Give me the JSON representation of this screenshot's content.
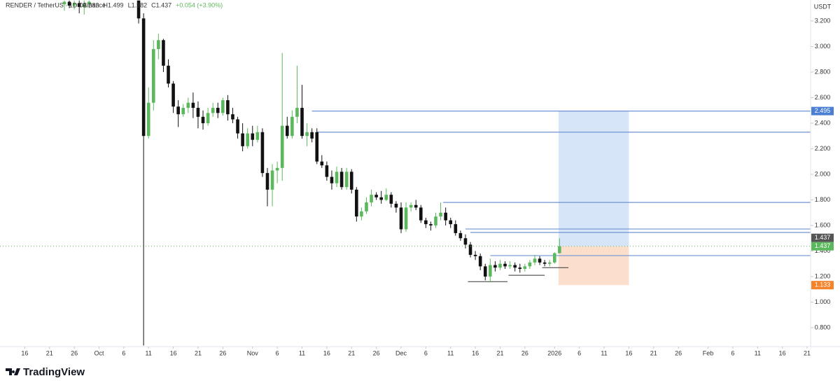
{
  "chart_data": {
    "type": "candlestick",
    "title": "RENDER / TetherUS · 1D · Binance",
    "ohlc_header": [
      "O1.383",
      "H1.499",
      "L1.382",
      "C1.437",
      "+0.054 (+3.90%)"
    ],
    "axis_unit": "USDT",
    "brand": "TradingView",
    "up_color": "#5cb85c",
    "down_color": "#111111",
    "x": [
      8,
      9,
      10,
      11,
      12,
      13,
      23,
      24,
      25,
      26,
      27,
      28,
      29,
      30,
      31,
      32,
      33,
      34,
      35,
      36,
      37,
      38,
      39,
      40,
      41,
      42,
      43,
      44,
      45,
      46,
      47,
      48,
      49,
      50,
      51,
      52,
      53,
      54,
      55,
      56,
      57,
      58,
      59,
      60,
      61,
      62,
      63,
      64,
      65,
      66,
      67,
      68,
      69,
      70,
      71,
      72,
      73,
      74,
      75,
      76,
      77,
      78,
      79,
      80,
      81,
      82,
      83,
      84,
      85,
      86,
      87,
      88,
      89,
      90,
      91,
      92,
      93,
      94,
      95,
      96,
      97,
      98,
      99,
      100,
      101,
      102,
      103,
      104,
      105,
      106,
      107,
      108
    ],
    "open": [
      3.33,
      3.35,
      3.32,
      3.34,
      3.31,
      3.33,
      3.36,
      3.22,
      2.3,
      2.56,
      2.98,
      3.05,
      2.85,
      2.71,
      2.53,
      2.47,
      2.52,
      2.56,
      2.52,
      2.45,
      2.4,
      2.48,
      2.52,
      2.48,
      2.58,
      2.47,
      2.43,
      2.32,
      2.22,
      2.32,
      2.27,
      2.33,
      2.01,
      1.88,
      2.03,
      2.05,
      2.38,
      2.3,
      2.45,
      2.52,
      2.3,
      2.33,
      2.33,
      2.1,
      2.07,
      1.98,
      1.93,
      2.02,
      1.9,
      2.02,
      1.88,
      1.67,
      1.71,
      1.78,
      1.84,
      1.82,
      1.8,
      1.84,
      1.77,
      1.74,
      1.57,
      1.74,
      1.76,
      1.74,
      1.64,
      1.61,
      1.6,
      1.67,
      1.7,
      1.64,
      1.61,
      1.54,
      1.5,
      1.45,
      1.37,
      1.36,
      1.28,
      1.2,
      1.29,
      1.27,
      1.3,
      1.28,
      1.29,
      1.27,
      1.26,
      1.28,
      1.31,
      1.34,
      1.31,
      1.3,
      1.31,
      1.383
    ],
    "high": [
      3.36,
      3.36,
      3.36,
      3.36,
      3.36,
      3.36,
      3.36,
      3.26,
      2.68,
      3.05,
      3.1,
      3.06,
      2.9,
      2.73,
      2.58,
      2.55,
      2.6,
      2.64,
      2.57,
      2.5,
      2.52,
      2.56,
      2.56,
      2.6,
      2.62,
      2.52,
      2.45,
      2.4,
      2.36,
      2.38,
      2.38,
      2.36,
      2.05,
      2.08,
      2.1,
      2.95,
      2.45,
      2.5,
      2.85,
      2.7,
      2.4,
      2.36,
      2.36,
      2.15,
      2.1,
      2.03,
      2.06,
      2.05,
      2.05,
      2.04,
      1.9,
      1.74,
      1.82,
      1.88,
      1.86,
      1.87,
      1.89,
      1.86,
      1.79,
      1.78,
      1.78,
      1.78,
      1.8,
      1.76,
      1.66,
      1.63,
      1.7,
      1.78,
      1.74,
      1.66,
      1.64,
      1.56,
      1.53,
      1.47,
      1.4,
      1.38,
      1.3,
      1.34,
      1.32,
      1.33,
      1.32,
      1.32,
      1.31,
      1.3,
      1.3,
      1.33,
      1.37,
      1.36,
      1.33,
      1.33,
      1.39,
      1.499
    ],
    "low": [
      3.28,
      3.3,
      3.29,
      3.26,
      3.25,
      3.3,
      3.18,
      0.66,
      2.28,
      2.5,
      2.9,
      2.8,
      2.68,
      2.48,
      2.37,
      2.45,
      2.48,
      2.44,
      2.36,
      2.35,
      2.38,
      2.45,
      2.44,
      2.46,
      2.42,
      2.4,
      2.28,
      2.18,
      2.2,
      2.22,
      2.25,
      1.98,
      1.75,
      1.75,
      1.93,
      1.95,
      2.28,
      2.28,
      2.4,
      2.28,
      2.22,
      2.25,
      2.08,
      2.05,
      1.95,
      1.88,
      1.9,
      1.88,
      1.88,
      1.85,
      1.63,
      1.64,
      1.69,
      1.75,
      1.8,
      1.77,
      1.79,
      1.74,
      1.7,
      1.54,
      1.55,
      1.71,
      1.72,
      1.62,
      1.58,
      1.56,
      1.58,
      1.64,
      1.6,
      1.58,
      1.52,
      1.48,
      1.42,
      1.35,
      1.33,
      1.25,
      1.17,
      1.16,
      1.24,
      1.25,
      1.26,
      1.26,
      1.24,
      1.23,
      1.24,
      1.26,
      1.29,
      1.29,
      1.28,
      1.28,
      1.3,
      1.382
    ],
    "close": [
      3.35,
      3.32,
      3.34,
      3.31,
      3.33,
      3.35,
      3.22,
      2.3,
      2.56,
      2.98,
      3.05,
      2.85,
      2.71,
      2.53,
      2.47,
      2.52,
      2.56,
      2.52,
      2.45,
      2.4,
      2.48,
      2.52,
      2.48,
      2.58,
      2.47,
      2.43,
      2.32,
      2.22,
      2.32,
      2.27,
      2.33,
      2.01,
      1.88,
      2.03,
      2.05,
      2.38,
      2.3,
      2.45,
      2.52,
      2.3,
      2.33,
      2.28,
      2.1,
      2.07,
      1.98,
      1.93,
      2.02,
      1.9,
      2.02,
      1.88,
      1.67,
      1.71,
      1.78,
      1.84,
      1.82,
      1.8,
      1.84,
      1.77,
      1.74,
      1.57,
      1.74,
      1.76,
      1.74,
      1.64,
      1.61,
      1.6,
      1.67,
      1.7,
      1.64,
      1.61,
      1.54,
      1.5,
      1.45,
      1.37,
      1.36,
      1.28,
      1.2,
      1.29,
      1.27,
      1.3,
      1.28,
      1.29,
      1.27,
      1.26,
      1.28,
      1.31,
      1.34,
      1.31,
      1.3,
      1.31,
      1.383,
      1.437
    ],
    "xlim": [
      -5,
      158.7
    ],
    "xticks": [
      {
        "value": 0,
        "label": "16"
      },
      {
        "value": 5,
        "label": "21"
      },
      {
        "value": 10,
        "label": "26"
      },
      {
        "value": 15,
        "label": "Oct"
      },
      {
        "value": 20,
        "label": "6"
      },
      {
        "value": 25,
        "label": "11"
      },
      {
        "value": 30,
        "label": "16"
      },
      {
        "value": 35,
        "label": "21"
      },
      {
        "value": 40,
        "label": "26"
      },
      {
        "value": 46,
        "label": "Nov"
      },
      {
        "value": 51,
        "label": "6"
      },
      {
        "value": 56,
        "label": "11"
      },
      {
        "value": 61,
        "label": "16"
      },
      {
        "value": 66,
        "label": "21"
      },
      {
        "value": 71,
        "label": "26"
      },
      {
        "value": 76,
        "label": "Dec"
      },
      {
        "value": 81,
        "label": "6"
      },
      {
        "value": 86,
        "label": "11"
      },
      {
        "value": 91,
        "label": "16"
      },
      {
        "value": 96,
        "label": "21"
      },
      {
        "value": 101,
        "label": "26"
      },
      {
        "value": 107,
        "label": "2026"
      },
      {
        "value": 112,
        "label": "6"
      },
      {
        "value": 117,
        "label": "11"
      },
      {
        "value": 122,
        "label": "16"
      },
      {
        "value": 127,
        "label": "21"
      },
      {
        "value": 132,
        "label": "26"
      },
      {
        "value": 138,
        "label": "Feb"
      },
      {
        "value": 143,
        "label": "6"
      },
      {
        "value": 148,
        "label": "11"
      },
      {
        "value": 153,
        "label": "16"
      },
      {
        "value": 158,
        "label": "21"
      }
    ],
    "ylim": [
      0.652,
      3.364
    ],
    "yticks": [
      {
        "value": 0.8,
        "label": "0.800"
      },
      {
        "value": 1.0,
        "label": "1.000"
      },
      {
        "value": 1.2,
        "label": "1.200"
      },
      {
        "value": 1.4,
        "label": "1.400"
      },
      {
        "value": 1.6,
        "label": "1.600"
      },
      {
        "value": 1.8,
        "label": "1.800"
      },
      {
        "value": 2.0,
        "label": "2.000"
      },
      {
        "value": 2.2,
        "label": "2.200"
      },
      {
        "value": 2.4,
        "label": "2.400"
      },
      {
        "value": 2.6,
        "label": "2.600"
      },
      {
        "value": 2.8,
        "label": "2.800"
      },
      {
        "value": 3.0,
        "label": "3.000"
      },
      {
        "value": 3.2,
        "label": "3.200"
      }
    ],
    "level_color": "#6f93d2",
    "levels": [
      {
        "value": 2.495,
        "from": 58
      },
      {
        "value": 2.33,
        "from": 59
      },
      {
        "value": 1.78,
        "from": 84.5
      },
      {
        "value": 1.572,
        "from": 89
      },
      {
        "value": 1.545,
        "from": 90
      },
      {
        "value": 1.364,
        "from": 94
      }
    ],
    "support_color": "#333333",
    "supports": [
      {
        "value": 1.16,
        "from": 89.5,
        "to": 97.5
      },
      {
        "value": 1.21,
        "from": 97.7,
        "to": 105
      },
      {
        "value": 1.27,
        "from": 104.5,
        "to": 109.8
      }
    ],
    "position": {
      "from": 107.8,
      "to": 122,
      "target": 2.495,
      "entry": 1.437,
      "stop": 1.133,
      "target_color": "#4a7fd4",
      "entry_color": "#555555",
      "stop_color": "#f5832a"
    }
  }
}
